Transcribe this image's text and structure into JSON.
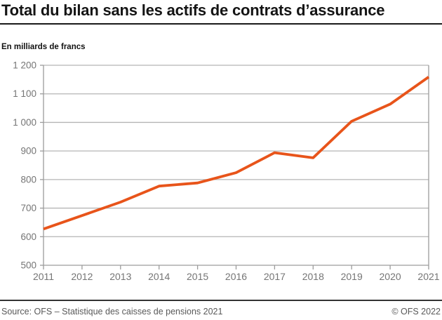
{
  "header": {
    "title": "Total du bilan sans les actifs de contrats d’assurance",
    "subtitle": "En milliards de francs"
  },
  "footer": {
    "source": "Source: OFS – Statistique des caisses de pensions 2021",
    "copyright": "© OFS 2022"
  },
  "colors": {
    "line": "#E8541A",
    "gridline": "#B5B5B5",
    "axis": "#9C9C9C",
    "tick_label": "#757575",
    "title_text": "#141414",
    "footer_text": "#595959",
    "rule": "#1A1A1A",
    "background": "#FFFFFF"
  },
  "chart_data": {
    "type": "line",
    "title": "Total du bilan sans les actifs de contrats d’assurance",
    "subtitle": "En milliards de francs",
    "xlabel": "",
    "ylabel": "En milliards de francs",
    "categories": [
      "2011",
      "2012",
      "2013",
      "2014",
      "2015",
      "2016",
      "2017",
      "2018",
      "2019",
      "2020",
      "2021"
    ],
    "series": [
      {
        "name": "Total du bilan sans les actifs de contrats d’assurance",
        "color": "#E8541A",
        "values": [
          627,
          674,
          721,
          777,
          788,
          824,
          894,
          876,
          1004,
          1064,
          1159
        ]
      }
    ],
    "ylim": [
      500,
      1200
    ],
    "ytick_step": 100,
    "grid": "horizontal",
    "legend": "none",
    "thousands_separator": "space"
  }
}
